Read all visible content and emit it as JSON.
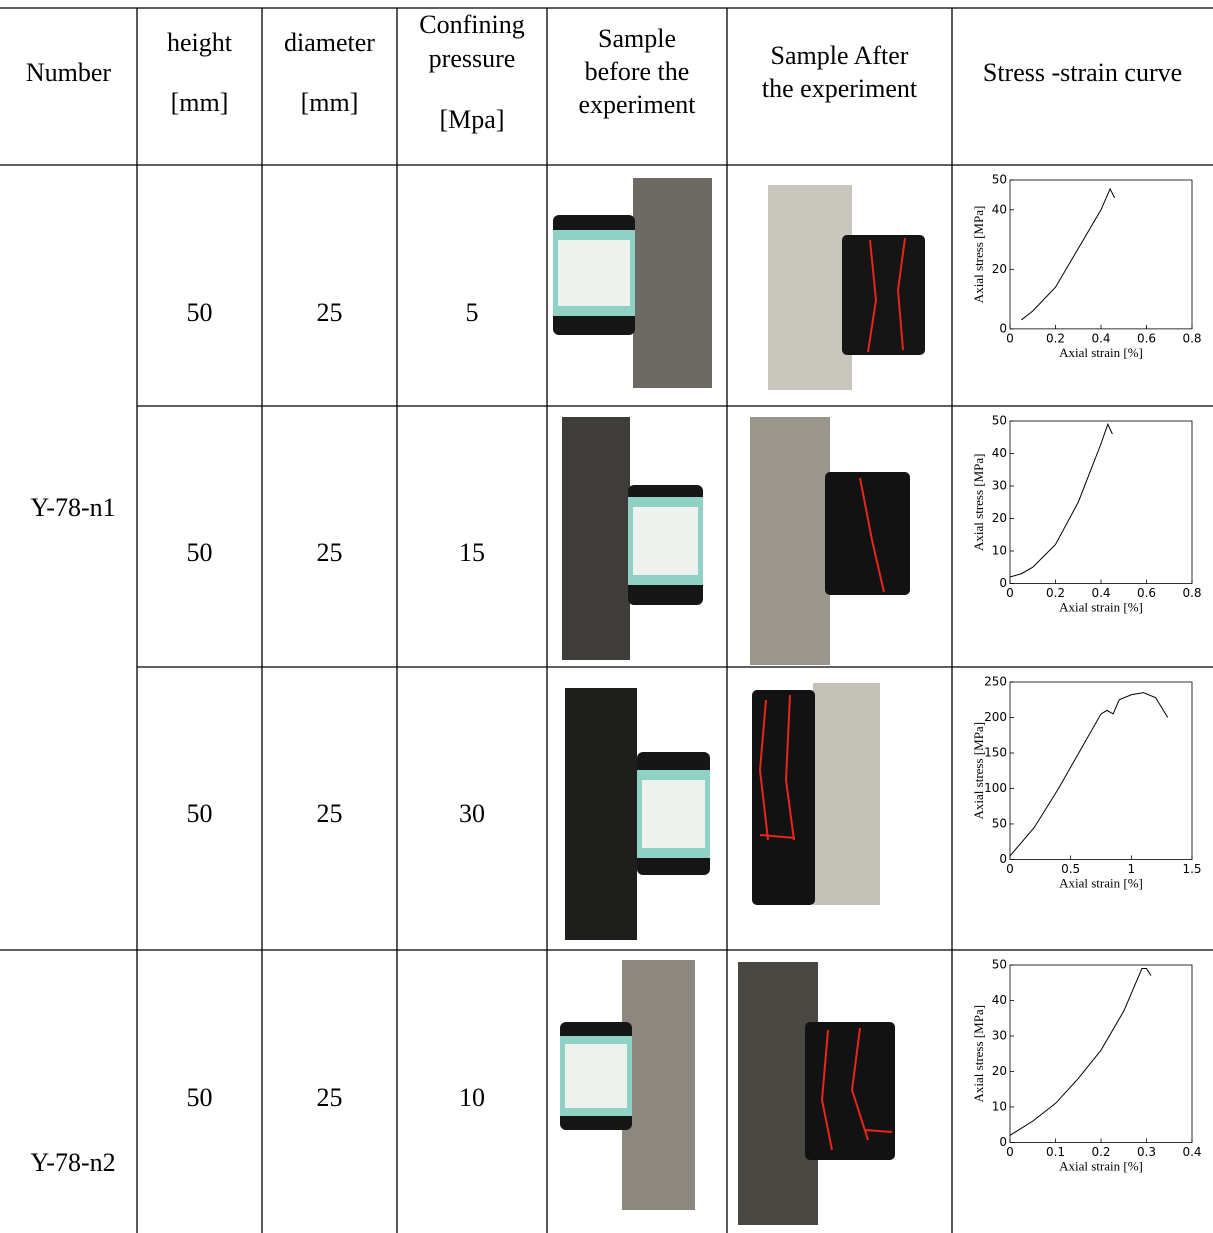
{
  "table": {
    "header": [
      [
        "Number"
      ],
      [
        "height",
        "[mm]"
      ],
      [
        "diameter",
        "[mm]"
      ],
      [
        "Confining",
        "pressure",
        "[Mpa]"
      ],
      [
        "Sample",
        "before the",
        "experiment"
      ],
      [
        "Sample After",
        "the experiment"
      ],
      [
        "Stress -strain curve"
      ]
    ],
    "groups": [
      {
        "number": "Y-78-n1"
      },
      {
        "number": "Y-78-n2"
      }
    ],
    "rows": [
      {
        "height": 50,
        "diameter": 25,
        "pressure": 5,
        "chart": {
          "type": "line",
          "xlabel": "Axial strain [%]",
          "ylabel": "Axial stress [MPa]",
          "color": "#000000",
          "xlim": [
            0,
            0.8
          ],
          "ylim": [
            0,
            50
          ],
          "xticks": [
            0,
            0.2,
            0.4,
            0.6,
            0.8
          ],
          "yticks": [
            0,
            20,
            40,
            50
          ],
          "x": [
            0.05,
            0.1,
            0.2,
            0.3,
            0.4,
            0.44,
            0.46
          ],
          "y": [
            3,
            6,
            14,
            27,
            40,
            47,
            44
          ]
        }
      },
      {
        "height": 50,
        "diameter": 25,
        "pressure": 15,
        "chart": {
          "type": "line",
          "xlabel": "Axial strain [%]",
          "ylabel": "Axial stress [MPa]",
          "color": "#000000",
          "xlim": [
            0,
            0.8
          ],
          "ylim": [
            0,
            50
          ],
          "xticks": [
            0,
            0.2,
            0.4,
            0.6,
            0.8
          ],
          "yticks": [
            0,
            10,
            20,
            30,
            40,
            50
          ],
          "x": [
            0,
            0.05,
            0.1,
            0.2,
            0.3,
            0.4,
            0.43,
            0.45
          ],
          "y": [
            2,
            3,
            5,
            12,
            25,
            43,
            49,
            46
          ]
        }
      },
      {
        "height": 50,
        "diameter": 25,
        "pressure": 30,
        "chart": {
          "type": "line",
          "xlabel": "Axial strain [%]",
          "ylabel": "Axial stress [MPa]",
          "color": "#000000",
          "xlim": [
            0,
            1.5
          ],
          "ylim": [
            0,
            250
          ],
          "xticks": [
            0,
            0.5,
            1,
            1.5
          ],
          "yticks": [
            0,
            50,
            100,
            150,
            200,
            250
          ],
          "x": [
            0,
            0.2,
            0.4,
            0.6,
            0.75,
            0.8,
            0.85,
            0.9,
            1.0,
            1.1,
            1.2,
            1.3
          ],
          "y": [
            5,
            45,
            100,
            160,
            205,
            210,
            205,
            225,
            232,
            235,
            228,
            200
          ]
        }
      },
      {
        "height": 50,
        "diameter": 25,
        "pressure": 10,
        "chart": {
          "type": "line",
          "xlabel": "Axial strain [%]",
          "ylabel": "Axial stress [MPa]",
          "color": "#000000",
          "xlim": [
            0,
            0.4
          ],
          "ylim": [
            0,
            50
          ],
          "xticks": [
            0,
            0.1,
            0.2,
            0.3,
            0.4
          ],
          "yticks": [
            0,
            10,
            20,
            30,
            40,
            50
          ],
          "x": [
            0,
            0.05,
            0.1,
            0.15,
            0.2,
            0.25,
            0.29,
            0.3,
            0.31
          ],
          "y": [
            2,
            6,
            11,
            18,
            26,
            37,
            49,
            49,
            47
          ]
        }
      }
    ]
  }
}
